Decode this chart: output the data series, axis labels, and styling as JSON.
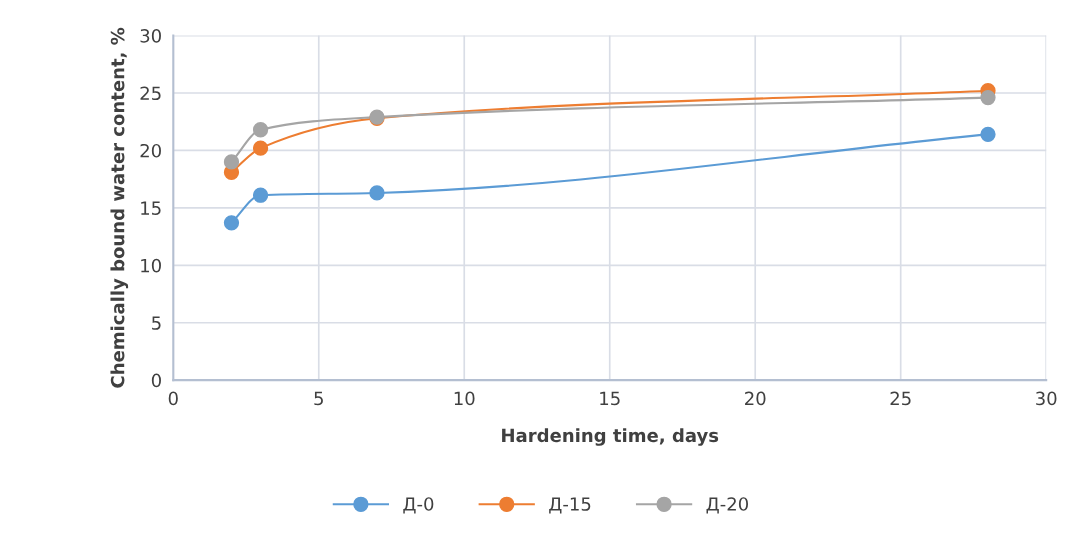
{
  "chart_data": {
    "type": "line",
    "xlabel": "Hardening time, days",
    "ylabel": "Chemically bound water content, %",
    "x": [
      2,
      3,
      7,
      28
    ],
    "series": [
      {
        "name": "Д-0",
        "color": "#5b9bd5",
        "values": [
          13.7,
          16.1,
          16.3,
          21.4
        ]
      },
      {
        "name": "Д-15",
        "color": "#ed7d31",
        "values": [
          18.1,
          20.2,
          22.8,
          25.2
        ]
      },
      {
        "name": "Д-20",
        "color": "#a5a5a5",
        "values": [
          19.0,
          21.8,
          22.9,
          24.6
        ]
      }
    ],
    "xlim": [
      0,
      30
    ],
    "xticks": [
      0,
      5,
      10,
      15,
      20,
      25,
      30
    ],
    "ylim": [
      0,
      30
    ],
    "yticks": [
      0,
      5,
      10,
      15,
      20,
      25,
      30
    ],
    "grid": true,
    "legend": "bottom",
    "marker": "circle",
    "line_style": "solid"
  }
}
